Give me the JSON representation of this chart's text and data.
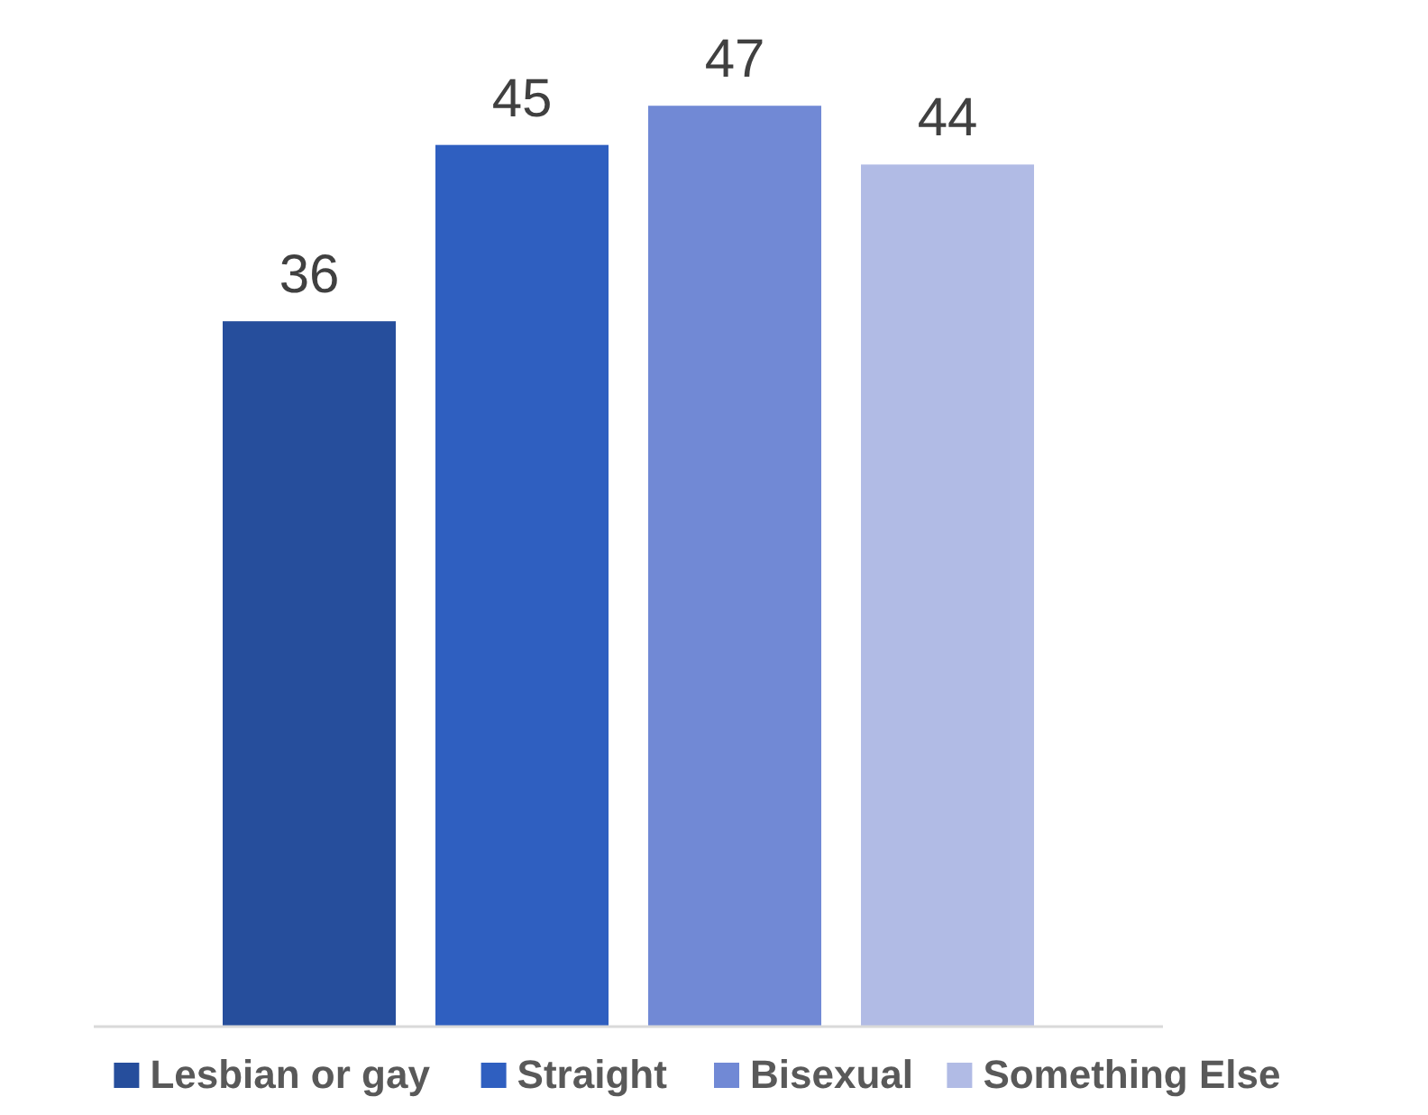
{
  "chart_data": {
    "type": "bar",
    "categories": [
      null
    ],
    "data_labels": true,
    "legend": "bottom",
    "series": [
      {
        "name": "Lesbian or gay",
        "color": "#264e9c",
        "values": [
          36
        ]
      },
      {
        "name": "Straight",
        "color": "#2f5fc0",
        "values": [
          45
        ]
      },
      {
        "name": "Bisexual",
        "color": "#7189d5",
        "values": [
          47
        ]
      },
      {
        "name": "Something Else",
        "color": "#b1bbe5",
        "values": [
          44
        ]
      }
    ]
  }
}
